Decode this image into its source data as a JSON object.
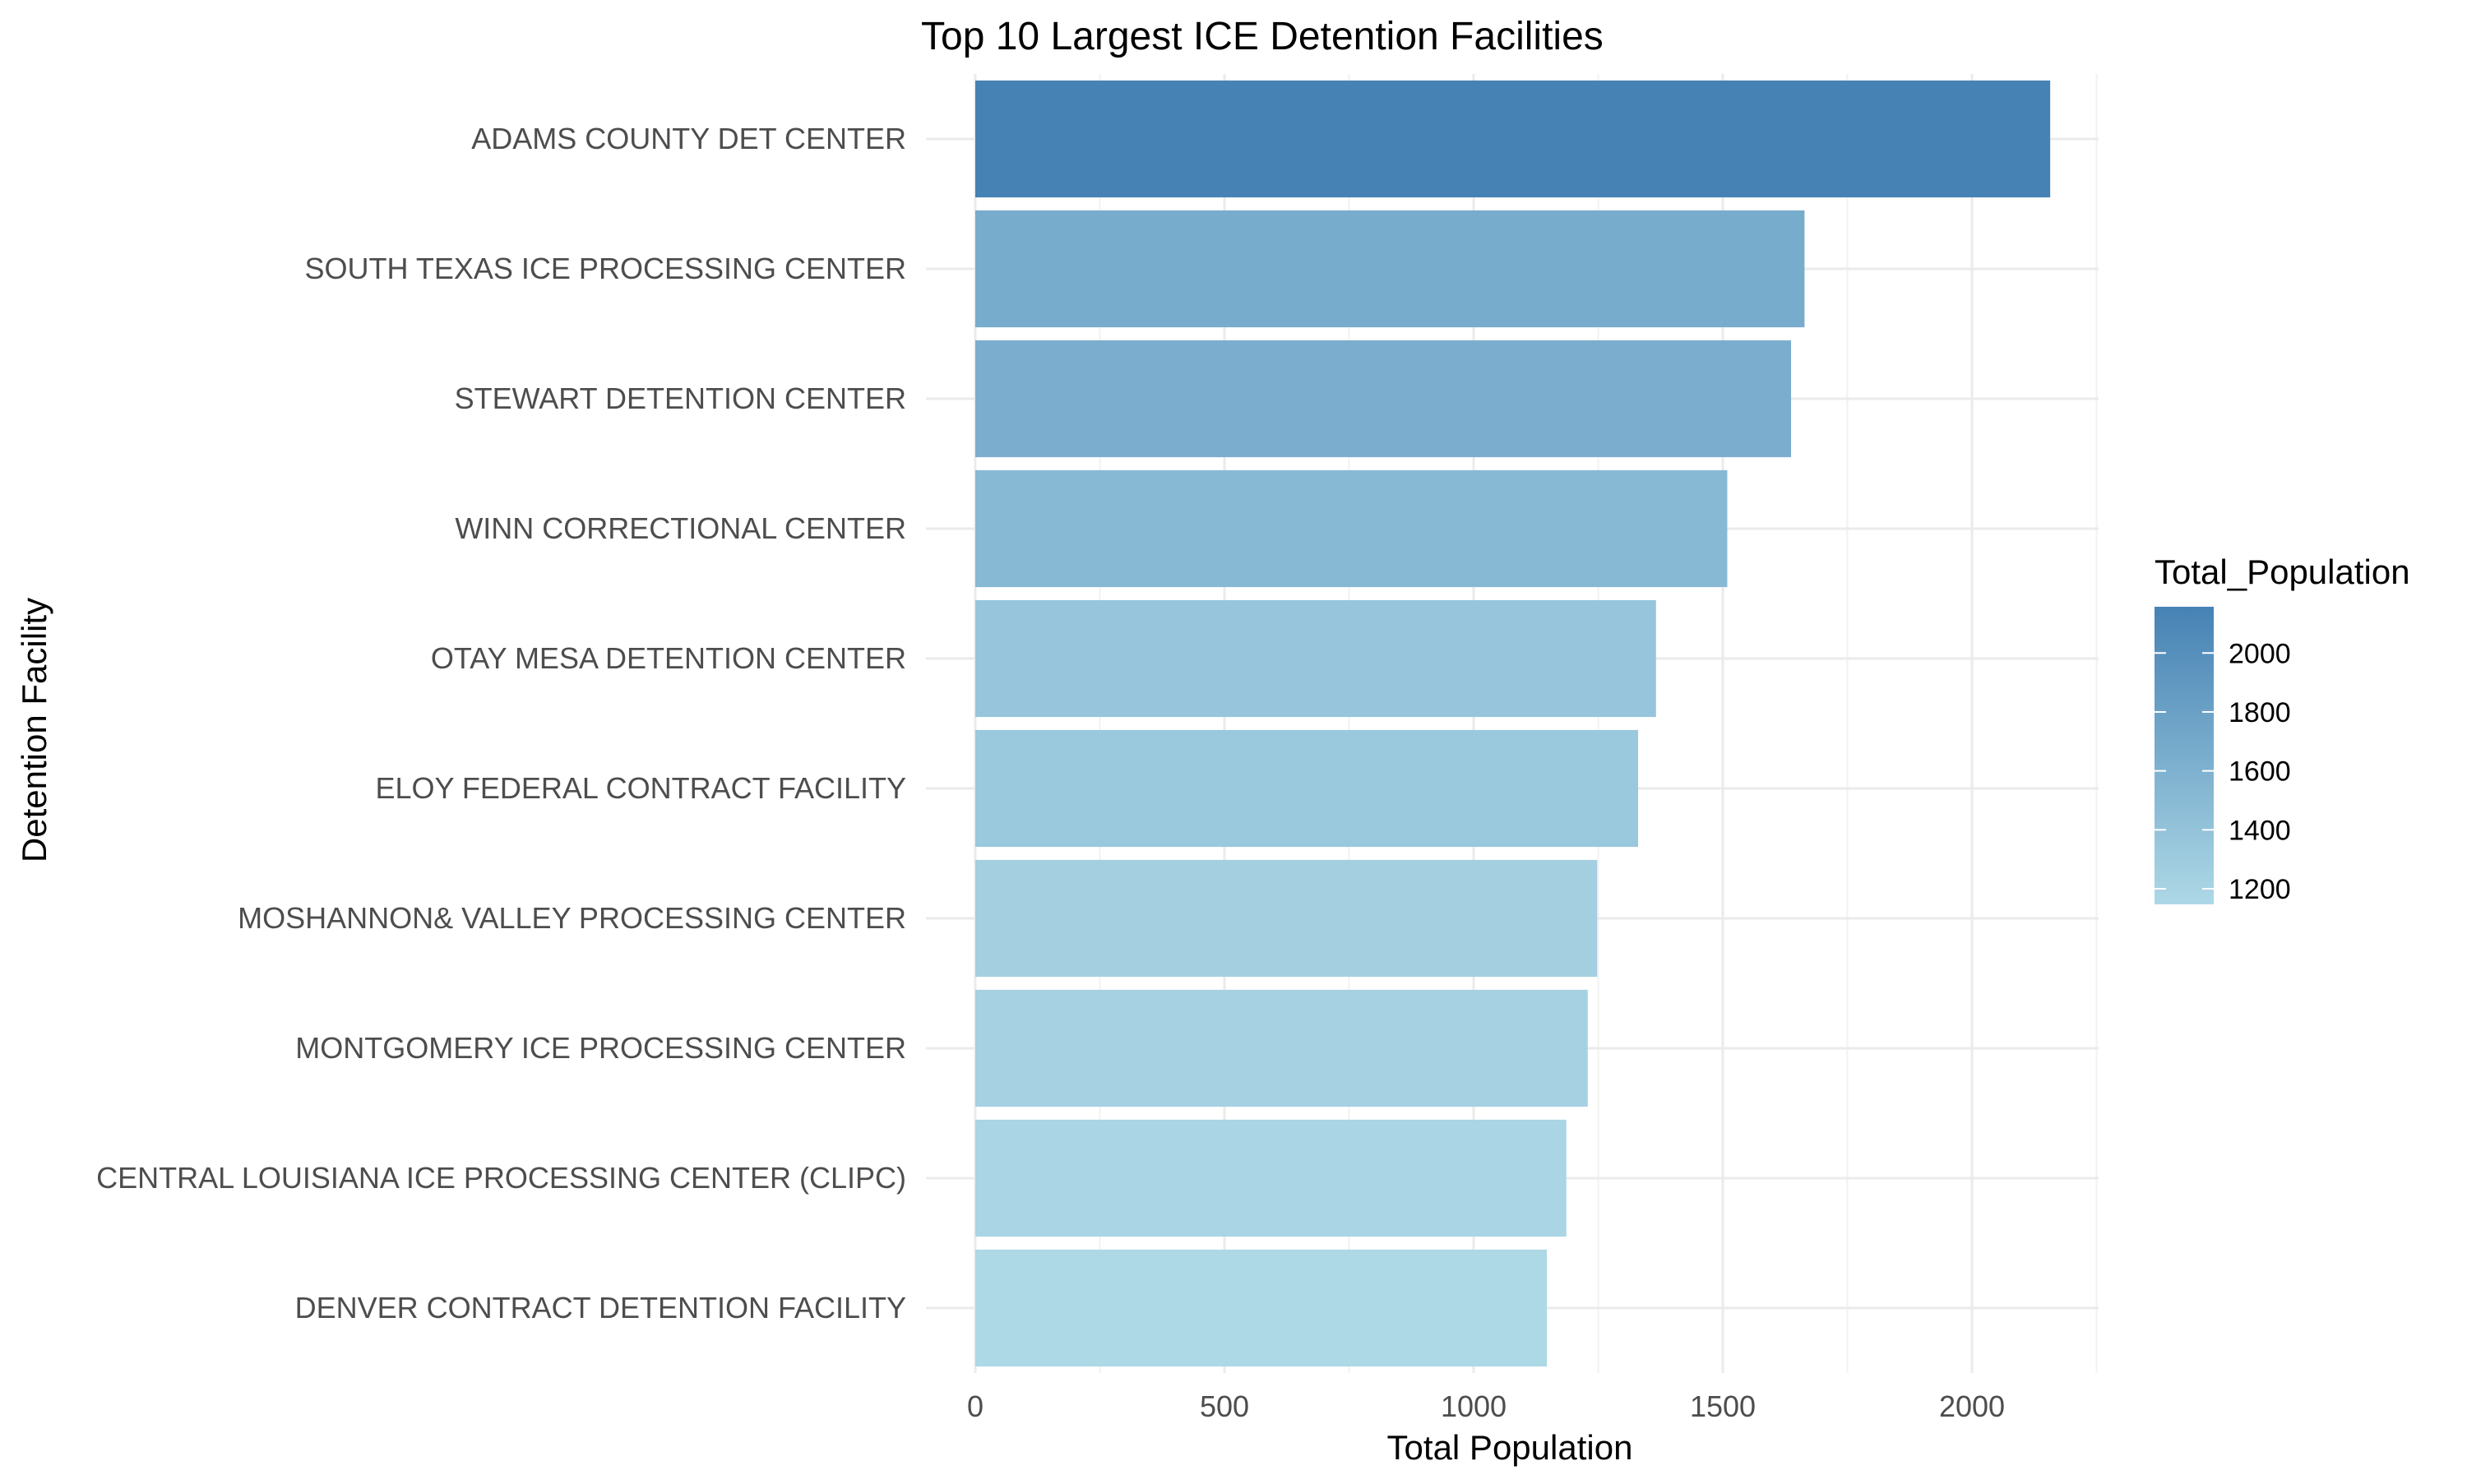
{
  "chart_data": {
    "type": "bar",
    "orientation": "horizontal",
    "title": "Top 10 Largest ICE Detention Facilities",
    "xlabel": "Total Population",
    "ylabel": "Detention Facility",
    "categories": [
      "ADAMS COUNTY DET CENTER",
      "SOUTH TEXAS ICE PROCESSING CENTER",
      "STEWART DETENTION CENTER",
      "WINN CORRECTIONAL CENTER",
      "OTAY MESA DETENTION CENTER",
      "ELOY FEDERAL CONTRACT FACILITY",
      "MOSHANNON& VALLEY PROCESSING CENTER",
      "MONTGOMERY ICE PROCESSING CENTER",
      "CENTRAL LOUISIANA ICE PROCESSING CENTER (CLIPC)",
      "DENVER CONTRACT DETENTION FACILITY"
    ],
    "values": [
      2157,
      1664,
      1637,
      1509,
      1366,
      1330,
      1248,
      1229,
      1186,
      1147
    ],
    "xlim": [
      0,
      2250
    ],
    "x_ticks": [
      0,
      500,
      1000,
      1500,
      2000
    ],
    "x_tick_labels": [
      "0",
      "500",
      "1000",
      "1500",
      "2000"
    ],
    "grid": true,
    "legend": {
      "title": "Total_Population",
      "position": "right",
      "type": "colorbar",
      "range": [
        1147,
        2157
      ],
      "ticks": [
        1200,
        1400,
        1600,
        1800,
        2000
      ],
      "tick_labels": [
        "1200",
        "1400",
        "1600",
        "1800",
        "2000"
      ],
      "color_low": "#add8e6",
      "color_high": "#4682b4"
    }
  }
}
